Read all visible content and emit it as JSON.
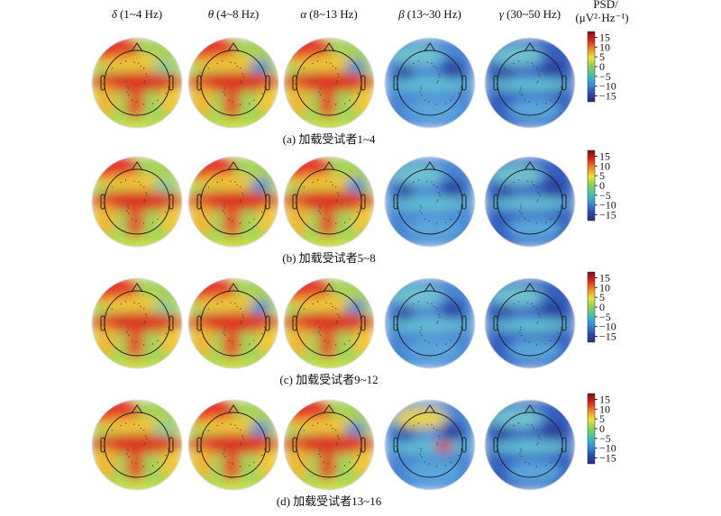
{
  "chart_data": {
    "type": "heatmap",
    "subtype": "scalp-topography",
    "bands": [
      {
        "symbol": "δ",
        "range": "(1~4 Hz)"
      },
      {
        "symbol": "θ",
        "range": "(4~8 Hz)"
      },
      {
        "symbol": "α",
        "range": "(8~13 Hz)"
      },
      {
        "symbol": "β",
        "range": "(13~30 Hz)"
      },
      {
        "symbol": "γ",
        "range": "(30~50 Hz)"
      }
    ],
    "rows": [
      {
        "caption": "(a) 加载受试者1~4",
        "pattern": [
          "high",
          "high",
          "high",
          "low",
          "low"
        ]
      },
      {
        "caption": "(b) 加载受试者5~8",
        "pattern": [
          "high",
          "high",
          "high",
          "low",
          "low"
        ]
      },
      {
        "caption": "(c) 加载受试者9~12",
        "pattern": [
          "high",
          "high",
          "high",
          "low",
          "low"
        ]
      },
      {
        "caption": "(d) 加载受试者13~16",
        "pattern": [
          "high",
          "high",
          "high",
          "mixed",
          "low"
        ]
      }
    ],
    "colorbar": {
      "label_line1": "PSD/",
      "label_line2": "(μV²·Hz⁻¹)",
      "range": [
        -18,
        18
      ],
      "ticks": [
        "15",
        "10",
        "5",
        "0",
        "−5",
        "−10",
        "−15"
      ],
      "tick_values": [
        15,
        10,
        5,
        0,
        -5,
        -10,
        -15
      ],
      "colors": [
        "#7a1010",
        "#d7261e",
        "#f08a24",
        "#e6e43a",
        "#86cf5a",
        "#3ec4b0",
        "#3a8fd8",
        "#2a4fb0",
        "#262c7a"
      ]
    }
  }
}
